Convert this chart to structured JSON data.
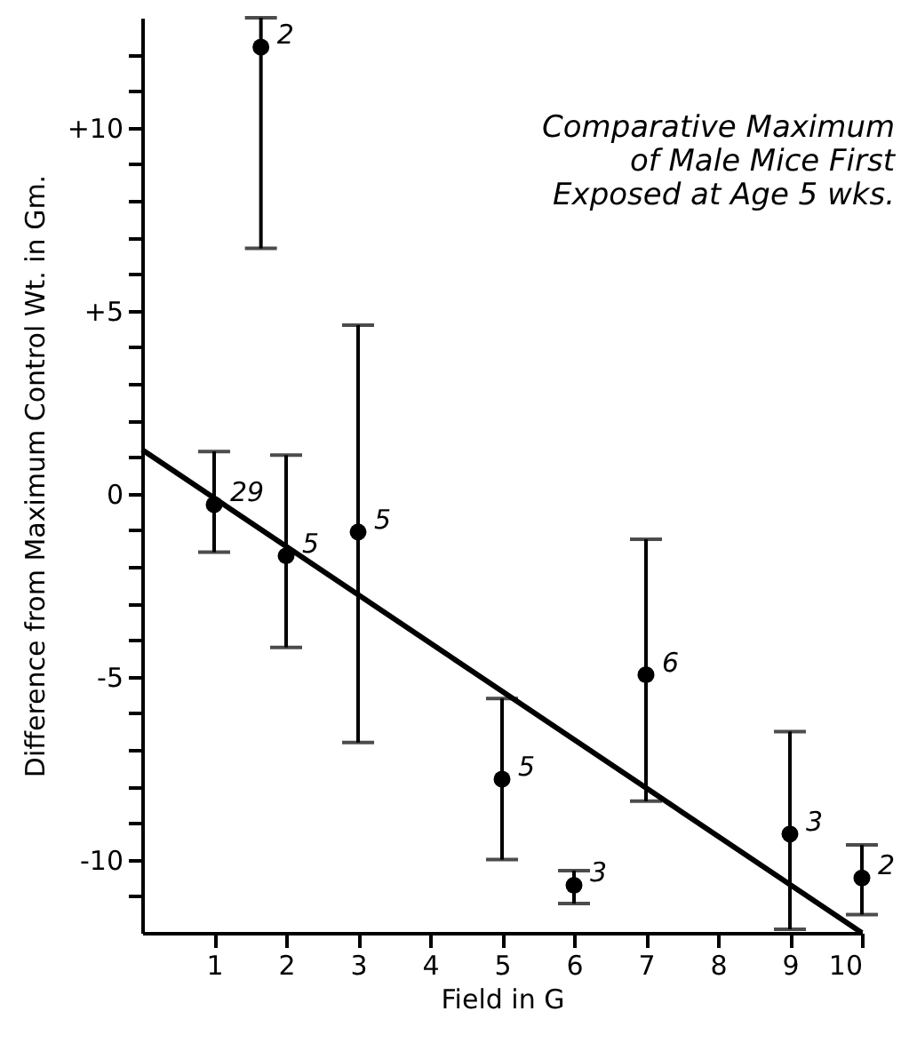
{
  "chart_data": {
    "type": "scatter",
    "title": "Comparative Maximum of Male Mice First Exposed at Age 5 wks.",
    "xlabel": "Field in G",
    "ylabel": "Difference from Maximum Control Wt. in Gm.",
    "xlim": [
      0,
      10
    ],
    "xticks": [
      1,
      2,
      3,
      4,
      5,
      6,
      7,
      8,
      9,
      10
    ],
    "ylim": [
      -12,
      13
    ],
    "yticks": [
      {
        "value": -11,
        "label": null
      },
      {
        "value": -10,
        "label": "-10"
      },
      {
        "value": -9,
        "label": null
      },
      {
        "value": -8,
        "label": null
      },
      {
        "value": -7,
        "label": null
      },
      {
        "value": -6,
        "label": null
      },
      {
        "value": -5,
        "label": "-5"
      },
      {
        "value": -4,
        "label": null
      },
      {
        "value": -3,
        "label": null
      },
      {
        "value": -2,
        "label": null
      },
      {
        "value": -1,
        "label": null
      },
      0,
      {
        "value": 1,
        "label": null
      },
      {
        "value": 2,
        "label": null
      },
      {
        "value": 3,
        "label": null
      },
      {
        "value": 4,
        "label": null
      },
      {
        "value": 5,
        "label": "+5"
      },
      {
        "value": 6,
        "label": null
      },
      {
        "value": 7,
        "label": null
      },
      {
        "value": 8,
        "label": null
      },
      {
        "value": 9,
        "label": null
      },
      {
        "value": 10,
        "label": "+10"
      },
      {
        "value": 11,
        "label": null
      },
      {
        "value": 12,
        "label": null
      }
    ],
    "grid": false,
    "series": [
      {
        "color": "#000000",
        "marker": "circle",
        "x": [
          1,
          1.65,
          2,
          3,
          5,
          6,
          7,
          9,
          10
        ],
        "values": [
          -0.3,
          12.2,
          -1.7,
          -1.05,
          -7.8,
          -10.7,
          -4.95,
          -9.3,
          -10.5
        ],
        "errors": [
          [
            -1.6,
            1.15
          ],
          [
            6.7,
            13
          ],
          [
            -4.2,
            1.05
          ],
          [
            -6.8,
            4.6
          ],
          [
            -10,
            -5.6
          ],
          [
            -11.2,
            -10.3
          ],
          [
            -8.4,
            -1.25
          ],
          [
            -11.9,
            -6.5
          ],
          [
            -11.5,
            -9.6
          ]
        ]
      },
      {
        "type": "line",
        "color": "#000000",
        "marker": "none",
        "line_style": "solid",
        "x": [
          0,
          10
        ],
        "values": [
          1.2,
          -12
        ]
      }
    ],
    "annotations": [
      {
        "text": "29",
        "x": 1,
        "y": -0.3
      },
      {
        "text": "2",
        "x": 1.65,
        "y": 12.2
      },
      {
        "text": "5",
        "x": 2,
        "y": -1.7
      },
      {
        "text": "5",
        "x": 3,
        "y": -1.05
      },
      {
        "text": "5",
        "x": 5,
        "y": -7.8
      },
      {
        "text": "3",
        "x": 6,
        "y": -10.7
      },
      {
        "text": "6",
        "x": 7,
        "y": -4.95
      },
      {
        "text": "3",
        "x": 9,
        "y": -9.3
      },
      {
        "text": "2",
        "x": 10,
        "y": -10.5
      }
    ]
  }
}
